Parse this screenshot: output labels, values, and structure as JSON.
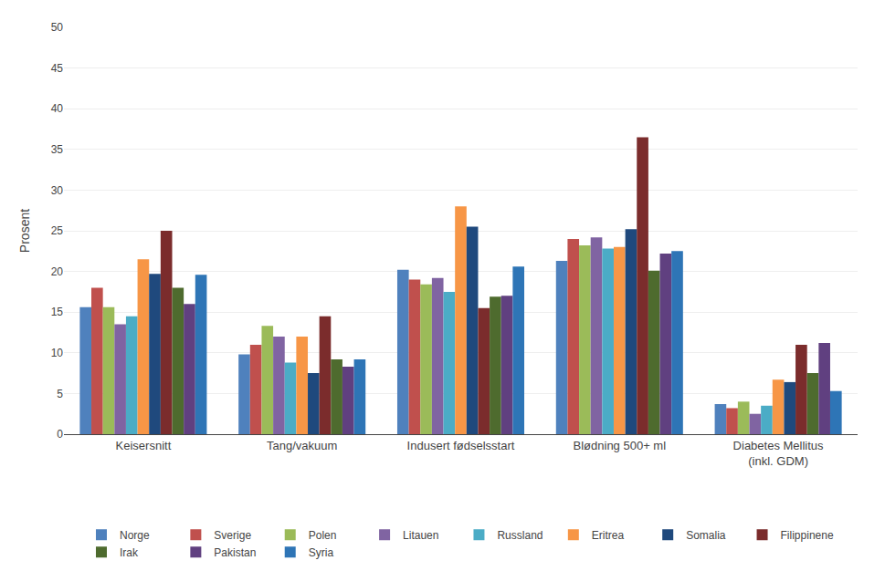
{
  "chart_data": {
    "type": "bar",
    "ylabel": "Prosent",
    "categories": [
      "Keisersnitt",
      "Tang/vakuum",
      "Indusert fødselsstart",
      "Blødning 500+ ml",
      "Diabetes Mellitus\n(inkl. GDM)"
    ],
    "series": [
      {
        "name": "Norge",
        "color": "#4F81BD",
        "values": [
          15.6,
          9.8,
          20.2,
          21.3,
          3.7
        ]
      },
      {
        "name": "Sverige",
        "color": "#C0504D",
        "values": [
          18.0,
          11.0,
          19.0,
          24.0,
          3.2
        ]
      },
      {
        "name": "Polen",
        "color": "#9BBB59",
        "values": [
          15.6,
          13.3,
          18.4,
          23.2,
          4.0
        ]
      },
      {
        "name": "Litauen",
        "color": "#8064A2",
        "values": [
          13.5,
          12.0,
          19.2,
          24.2,
          2.5
        ]
      },
      {
        "name": "Russland",
        "color": "#4BACC6",
        "values": [
          14.5,
          8.8,
          17.5,
          22.8,
          3.5
        ]
      },
      {
        "name": "Eritrea",
        "color": "#F79646",
        "values": [
          21.5,
          12.0,
          28.0,
          23.0,
          6.7
        ]
      },
      {
        "name": "Somalia",
        "color": "#1F497D",
        "values": [
          19.7,
          7.5,
          25.5,
          25.2,
          6.4
        ]
      },
      {
        "name": "Filippinene",
        "color": "#7B2C2C",
        "values": [
          25.0,
          14.5,
          15.5,
          36.5,
          11.0
        ]
      },
      {
        "name": "Irak",
        "color": "#4E6B2E",
        "values": [
          18.0,
          9.2,
          16.9,
          20.1,
          7.5
        ]
      },
      {
        "name": "Pakistan",
        "color": "#604080",
        "values": [
          16.0,
          8.3,
          17.0,
          22.2,
          11.2
        ]
      },
      {
        "name": "Syria",
        "color": "#2E75B6",
        "values": [
          19.6,
          9.2,
          20.6,
          22.5,
          5.3
        ]
      }
    ],
    "ylim": [
      0,
      50
    ],
    "yticks": [
      0,
      5,
      10,
      15,
      20,
      25,
      30,
      35,
      40,
      45,
      50
    ],
    "grid": true,
    "legend": "bottom"
  }
}
